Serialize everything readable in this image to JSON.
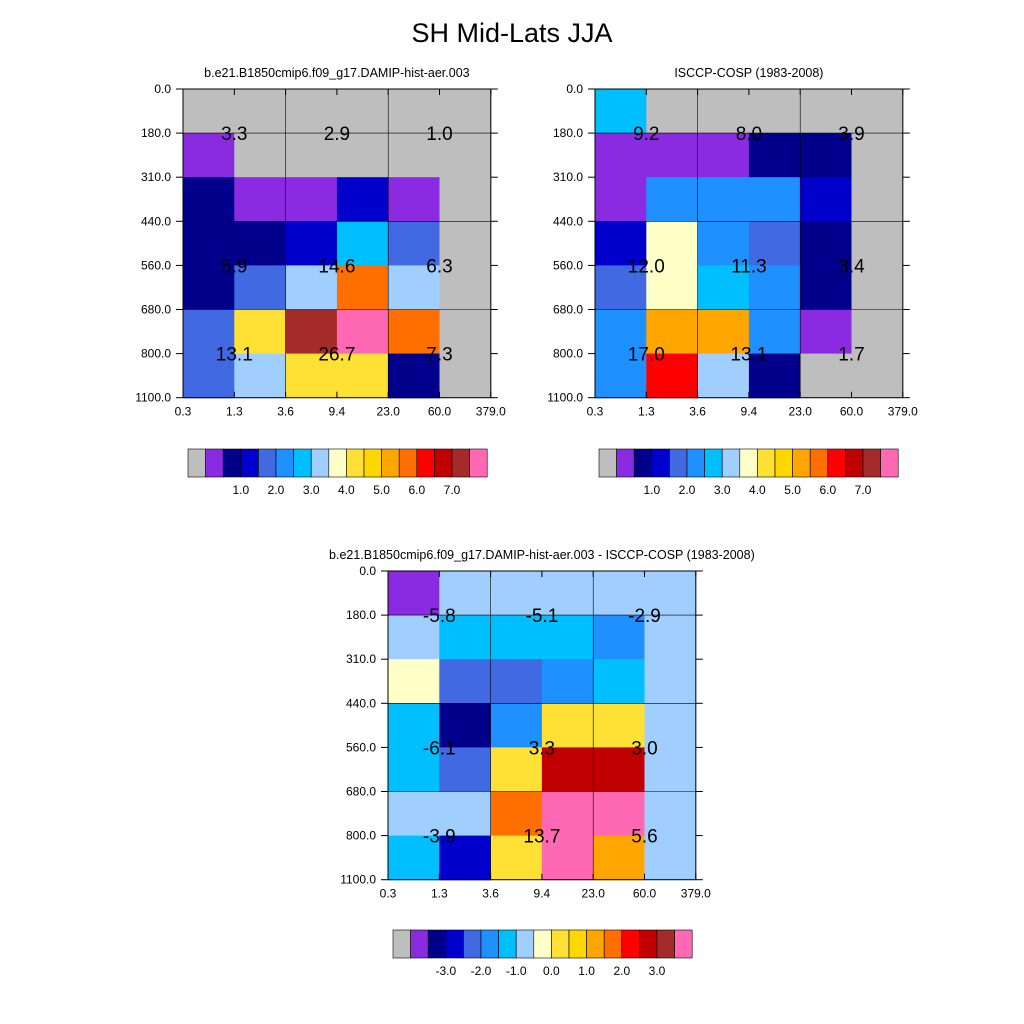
{
  "title": "SH Mid-Lats JJA",
  "colors": {
    "grey": "#BEBEBE",
    "purple": "#8A2BE2",
    "navy": "#00008B",
    "blue": "#0000CD",
    "royal": "#4169E1",
    "dodger": "#1E90FF",
    "sky": "#00BFFF",
    "lightsky": "#A0CFFF",
    "cream": "#FFFFC8",
    "yellow": "#FFE135",
    "gold": "#FFD700",
    "orange": "#FFA500",
    "dorange": "#FF6F00",
    "red": "#FF0000",
    "crimson": "#C00000",
    "brown": "#A52A2A",
    "pink": "#FF69B4"
  },
  "chart_data": [
    {
      "type": "heatmap",
      "title": "b.e21.B1850cmip6.f09_g17.DAMIP-hist-aer.003",
      "x_ticks": [
        "0.3",
        "1.3",
        "3.6",
        "9.4",
        "23.0",
        "60.0",
        "379.0"
      ],
      "y_ticks": [
        "0.0",
        "180.0",
        "310.0",
        "440.0",
        "560.0",
        "680.0",
        "800.0",
        "1100.0"
      ],
      "cells": [
        [
          "grey",
          "grey",
          "grey",
          "grey",
          "grey",
          "grey"
        ],
        [
          "purple",
          "grey",
          "grey",
          "grey",
          "grey",
          "grey"
        ],
        [
          "navy",
          "purple",
          "purple",
          "blue",
          "purple",
          "grey"
        ],
        [
          "navy",
          "navy",
          "blue",
          "sky",
          "royal",
          "grey"
        ],
        [
          "navy",
          "royal",
          "lightsky",
          "dorange",
          "lightsky",
          "grey"
        ],
        [
          "royal",
          "yellow",
          "brown",
          "pink",
          "dorange",
          "grey"
        ],
        [
          "royal",
          "lightsky",
          "yellow",
          "yellow",
          "navy",
          "grey"
        ]
      ],
      "annotations": [
        {
          "x": "1.3",
          "y": "180.0",
          "text": "3.3"
        },
        {
          "x": "9.4",
          "y": "180.0",
          "text": "2.9"
        },
        {
          "x": "60.0",
          "y": "180.0",
          "text": "1.0"
        },
        {
          "x": "1.3",
          "y": "560.0",
          "text": "5.9"
        },
        {
          "x": "9.4",
          "y": "560.0",
          "text": "14.6"
        },
        {
          "x": "60.0",
          "y": "560.0",
          "text": "6.3"
        },
        {
          "x": "1.3",
          "y": "800.0",
          "text": "13.1"
        },
        {
          "x": "9.4",
          "y": "800.0",
          "text": "26.7"
        },
        {
          "x": "60.0",
          "y": "800.0",
          "text": "7.3"
        }
      ],
      "colorbar": {
        "colors": [
          "grey",
          "purple",
          "navy",
          "blue",
          "royal",
          "dodger",
          "sky",
          "lightsky",
          "cream",
          "yellow",
          "gold",
          "orange",
          "dorange",
          "red",
          "crimson",
          "brown",
          "pink"
        ],
        "labels": [
          "1.0",
          "2.0",
          "3.0",
          "4.0",
          "5.0",
          "6.0",
          "7.0"
        ]
      }
    },
    {
      "type": "heatmap",
      "title": "ISCCP-COSP (1983-2008)",
      "x_ticks": [
        "0.3",
        "1.3",
        "3.6",
        "9.4",
        "23.0",
        "60.0",
        "379.0"
      ],
      "y_ticks": [
        "0.0",
        "180.0",
        "310.0",
        "440.0",
        "560.0",
        "680.0",
        "800.0",
        "1100.0"
      ],
      "cells": [
        [
          "sky",
          "grey",
          "grey",
          "grey",
          "grey",
          "grey"
        ],
        [
          "purple",
          "purple",
          "purple",
          "navy",
          "navy",
          "grey"
        ],
        [
          "purple",
          "dodger",
          "dodger",
          "dodger",
          "blue",
          "grey"
        ],
        [
          "blue",
          "cream",
          "dodger",
          "royal",
          "navy",
          "grey"
        ],
        [
          "royal",
          "cream",
          "sky",
          "dodger",
          "navy",
          "grey"
        ],
        [
          "dodger",
          "orange",
          "orange",
          "dodger",
          "purple",
          "grey"
        ],
        [
          "dodger",
          "red",
          "lightsky",
          "navy",
          "grey",
          "grey"
        ]
      ],
      "annotations": [
        {
          "x": "1.3",
          "y": "180.0",
          "text": "9.2"
        },
        {
          "x": "9.4",
          "y": "180.0",
          "text": "8.0"
        },
        {
          "x": "60.0",
          "y": "180.0",
          "text": "3.9"
        },
        {
          "x": "1.3",
          "y": "560.0",
          "text": "12.0"
        },
        {
          "x": "9.4",
          "y": "560.0",
          "text": "11.3"
        },
        {
          "x": "60.0",
          "y": "560.0",
          "text": "3.4"
        },
        {
          "x": "1.3",
          "y": "800.0",
          "text": "17.0"
        },
        {
          "x": "9.4",
          "y": "800.0",
          "text": "13.1"
        },
        {
          "x": "60.0",
          "y": "800.0",
          "text": "1.7"
        }
      ],
      "colorbar": {
        "colors": [
          "grey",
          "purple",
          "navy",
          "blue",
          "royal",
          "dodger",
          "sky",
          "lightsky",
          "cream",
          "yellow",
          "gold",
          "orange",
          "dorange",
          "red",
          "crimson",
          "brown",
          "pink"
        ],
        "labels": [
          "1.0",
          "2.0",
          "3.0",
          "4.0",
          "5.0",
          "6.0",
          "7.0"
        ]
      }
    },
    {
      "type": "heatmap",
      "title": "b.e21.B1850cmip6.f09_g17.DAMIP-hist-aer.003 - ISCCP-COSP (1983-2008)",
      "x_ticks": [
        "0.3",
        "1.3",
        "3.6",
        "9.4",
        "23.0",
        "60.0",
        "379.0"
      ],
      "y_ticks": [
        "0.0",
        "180.0",
        "310.0",
        "440.0",
        "560.0",
        "680.0",
        "800.0",
        "1100.0"
      ],
      "cells": [
        [
          "purple",
          "lightsky",
          "lightsky",
          "lightsky",
          "lightsky",
          "lightsky"
        ],
        [
          "lightsky",
          "sky",
          "sky",
          "sky",
          "dodger",
          "lightsky"
        ],
        [
          "cream",
          "royal",
          "royal",
          "dodger",
          "sky",
          "lightsky"
        ],
        [
          "sky",
          "navy",
          "dodger",
          "yellow",
          "yellow",
          "lightsky"
        ],
        [
          "sky",
          "royal",
          "yellow",
          "crimson",
          "crimson",
          "lightsky"
        ],
        [
          "lightsky",
          "lightsky",
          "dorange",
          "pink",
          "pink",
          "lightsky"
        ],
        [
          "sky",
          "blue",
          "yellow",
          "pink",
          "orange",
          "lightsky"
        ]
      ],
      "annotations": [
        {
          "x": "1.3",
          "y": "180.0",
          "text": "-5.8"
        },
        {
          "x": "9.4",
          "y": "180.0",
          "text": "-5.1"
        },
        {
          "x": "60.0",
          "y": "180.0",
          "text": "-2.9"
        },
        {
          "x": "1.3",
          "y": "560.0",
          "text": "-6.1"
        },
        {
          "x": "9.4",
          "y": "560.0",
          "text": "3.3"
        },
        {
          "x": "60.0",
          "y": "560.0",
          "text": "3.0"
        },
        {
          "x": "1.3",
          "y": "800.0",
          "text": "-3.9"
        },
        {
          "x": "9.4",
          "y": "800.0",
          "text": "13.7"
        },
        {
          "x": "60.0",
          "y": "800.0",
          "text": "5.6"
        }
      ],
      "colorbar": {
        "colors": [
          "grey",
          "purple",
          "navy",
          "blue",
          "royal",
          "dodger",
          "sky",
          "lightsky",
          "cream",
          "yellow",
          "gold",
          "orange",
          "dorange",
          "red",
          "crimson",
          "brown",
          "pink"
        ],
        "labels": [
          "-3.0",
          "-2.0",
          "-1.0",
          "0.0",
          "1.0",
          "2.0",
          "3.0"
        ]
      }
    }
  ]
}
